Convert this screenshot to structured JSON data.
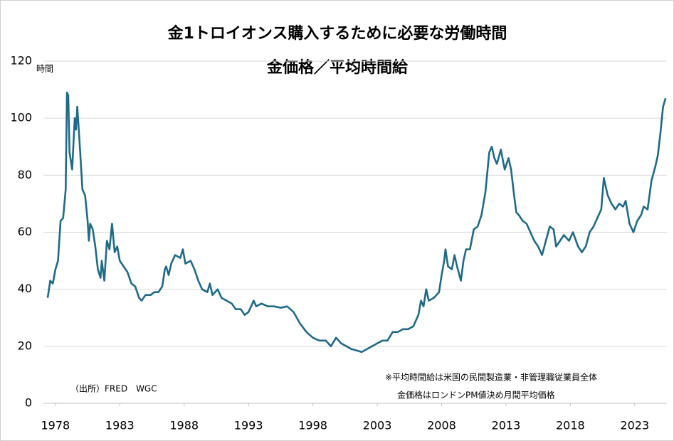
{
  "chart_data": {
    "type": "line",
    "title": "金1トロイオンス購入するために必要な労働時間",
    "subtitle": "金価格／平均時間給",
    "y_label": "時間",
    "annotations": [
      "（出所）FRED　WGC",
      "※平均時間給は米国の民間製造業・非管理職従業員全体",
      "金価格はロンドンPM値決め月間平均価格"
    ],
    "color": "#1f6a87",
    "grid": true,
    "xlim": [
      1977.4,
      2025.5
    ],
    "xticks": [
      1978,
      1983,
      1988,
      1993,
      1998,
      2003,
      2008,
      2013,
      2018,
      2023
    ],
    "ylim": [
      0,
      120
    ],
    "yticks": [
      0,
      20,
      40,
      60,
      80,
      100,
      120
    ],
    "x": [
      1977.4,
      1977.6,
      1977.8,
      1978.0,
      1978.2,
      1978.4,
      1978.6,
      1978.8,
      1978.9,
      1979.0,
      1979.1,
      1979.3,
      1979.5,
      1979.6,
      1979.7,
      1979.9,
      1980.1,
      1980.3,
      1980.5,
      1980.6,
      1980.7,
      1980.9,
      1981.1,
      1981.3,
      1981.5,
      1981.6,
      1981.8,
      1982.0,
      1982.2,
      1982.4,
      1982.6,
      1982.8,
      1983.0,
      1983.3,
      1983.6,
      1983.9,
      1984.2,
      1984.5,
      1984.7,
      1985.0,
      1985.4,
      1985.7,
      1986.0,
      1986.3,
      1986.5,
      1986.6,
      1986.8,
      1987.0,
      1987.3,
      1987.7,
      1987.9,
      1988.1,
      1988.5,
      1988.8,
      1989.1,
      1989.4,
      1989.8,
      1990.0,
      1990.2,
      1990.6,
      1990.9,
      1991.3,
      1991.7,
      1992.0,
      1992.4,
      1992.7,
      1993.0,
      1993.4,
      1993.6,
      1994.0,
      1994.5,
      1995.0,
      1995.5,
      1996.0,
      1996.5,
      1997.0,
      1997.5,
      1998.0,
      1998.5,
      1999.0,
      1999.4,
      1999.8,
      2000.2,
      2000.6,
      2001.0,
      2001.4,
      2001.8,
      2002.2,
      2002.6,
      2003.0,
      2003.4,
      2003.8,
      2004.2,
      2004.6,
      2005.0,
      2005.4,
      2005.8,
      2006.2,
      2006.4,
      2006.6,
      2006.8,
      2007.0,
      2007.4,
      2007.8,
      2008.0,
      2008.2,
      2008.3,
      2008.5,
      2008.8,
      2009.0,
      2009.2,
      2009.5,
      2009.7,
      2009.9,
      2010.2,
      2010.5,
      2010.8,
      2011.1,
      2011.4,
      2011.7,
      2011.9,
      2012.1,
      2012.3,
      2012.6,
      2012.9,
      2013.2,
      2013.4,
      2013.6,
      2013.8,
      2014.0,
      2014.3,
      2014.6,
      2014.9,
      2015.2,
      2015.5,
      2015.8,
      2016.1,
      2016.4,
      2016.7,
      2016.9,
      2017.2,
      2017.5,
      2017.9,
      2018.2,
      2018.6,
      2018.9,
      2019.2,
      2019.5,
      2019.8,
      2020.1,
      2020.4,
      2020.6,
      2020.9,
      2021.2,
      2021.5,
      2021.8,
      2022.1,
      2022.3,
      2022.6,
      2022.9,
      2023.2,
      2023.5,
      2023.7,
      2024.0,
      2024.3,
      2024.6,
      2024.8,
      2025.0,
      2025.2,
      2025.4
    ],
    "values": [
      37,
      43,
      42,
      47,
      50,
      64,
      65,
      75,
      109,
      108,
      88,
      82,
      100,
      96,
      104,
      90,
      75,
      73,
      64,
      57,
      63,
      61,
      55,
      47,
      44,
      50,
      43,
      57,
      54,
      63,
      53,
      55,
      50,
      48,
      46,
      42,
      41,
      37,
      36,
      38,
      38,
      39,
      39,
      41,
      47,
      48,
      45,
      49,
      52,
      51,
      54,
      49,
      50,
      47,
      43,
      40,
      39,
      42,
      38,
      40,
      37,
      36,
      35,
      33,
      33,
      31,
      32,
      36,
      34,
      35,
      34,
      34,
      33.5,
      34,
      32,
      28,
      25,
      23,
      22,
      22,
      20,
      23,
      21,
      20,
      19,
      18.5,
      18,
      19,
      20,
      21,
      22,
      22,
      25,
      25,
      26,
      26,
      27,
      31,
      36,
      34,
      40,
      36,
      37,
      39,
      45,
      50,
      54,
      48,
      47,
      52,
      48,
      43,
      50,
      54,
      54,
      61,
      62,
      66,
      74,
      88,
      90,
      86,
      84,
      89,
      82,
      86,
      82,
      74,
      67,
      66,
      64,
      63,
      60,
      57,
      55,
      52,
      57,
      62,
      61,
      55,
      57,
      59,
      57,
      60,
      55,
      53,
      55,
      60,
      62,
      65,
      68,
      79,
      73,
      70,
      68,
      70,
      69,
      71,
      63,
      60,
      64,
      66,
      69,
      68,
      78,
      83,
      87,
      95,
      104,
      107
    ]
  }
}
